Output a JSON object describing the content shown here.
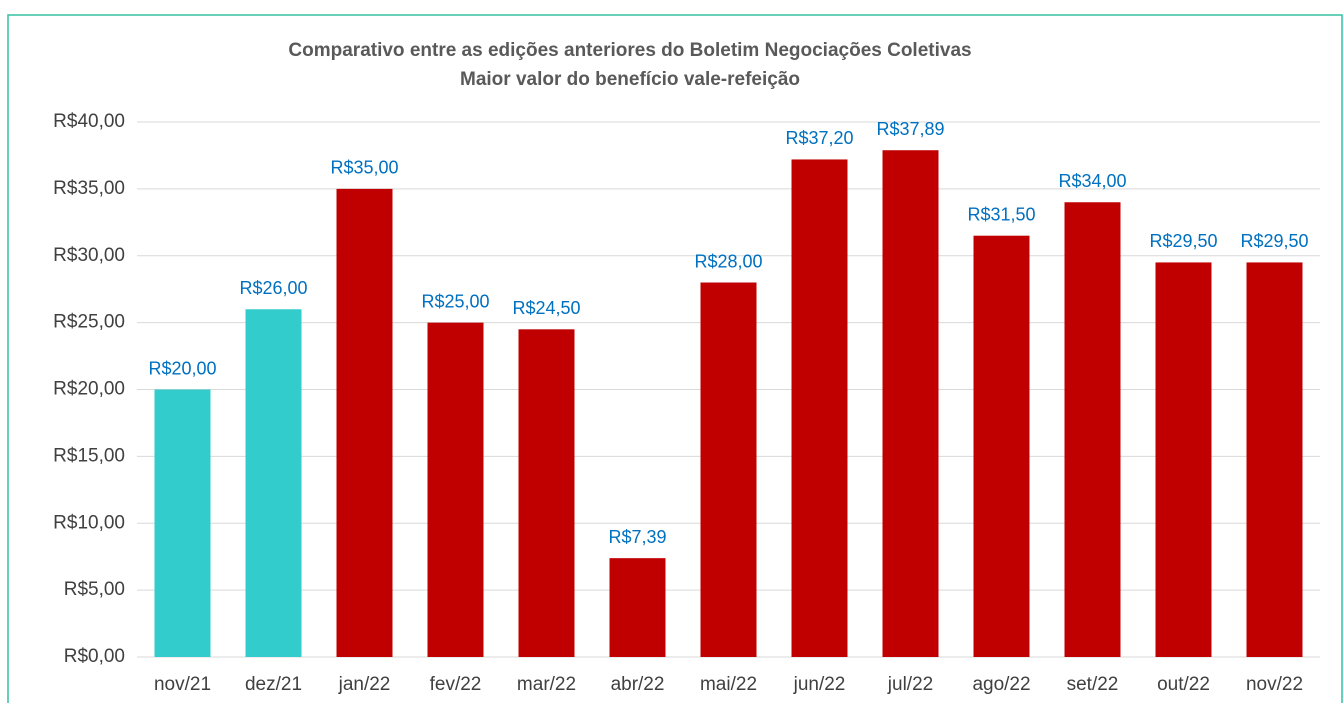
{
  "chart_data": {
    "type": "bar",
    "title": "Comparativo entre as edições anteriores do Boletim Negociações Coletivas",
    "subtitle": "Maior valor do benefício vale-refeição",
    "categories": [
      "nov/21",
      "dez/21",
      "jan/22",
      "fev/22",
      "mar/22",
      "abr/22",
      "mai/22",
      "jun/22",
      "jul/22",
      "ago/22",
      "set/22",
      "out/22",
      "nov/22"
    ],
    "values": [
      20,
      26,
      35,
      25,
      24.5,
      7.39,
      28,
      37.2,
      37.89,
      31.5,
      34,
      29.5,
      29.5
    ],
    "value_labels": [
      "R$20,00",
      "R$26,00",
      "R$35,00",
      "R$25,00",
      "R$24,50",
      "R$7,39",
      "R$28,00",
      "R$37,20",
      "R$37,89",
      "R$31,50",
      "R$34,00",
      "R$29,50",
      "R$29,50"
    ],
    "colors": [
      "#33cccc",
      "#33cccc",
      "#c00000",
      "#c00000",
      "#c00000",
      "#c00000",
      "#c00000",
      "#c00000",
      "#c00000",
      "#c00000",
      "#c00000",
      "#c00000",
      "#c00000"
    ],
    "ylim": [
      0,
      40
    ],
    "yticks": [
      {
        "value": 0,
        "label": "R$0,00"
      },
      {
        "value": 5,
        "label": "R$5,00"
      },
      {
        "value": 10,
        "label": "R$10,00"
      },
      {
        "value": 15,
        "label": "R$15,00"
      },
      {
        "value": 20,
        "label": "R$20,00"
      },
      {
        "value": 25,
        "label": "R$25,00"
      },
      {
        "value": 30,
        "label": "R$30,00"
      },
      {
        "value": 35,
        "label": "R$35,00"
      },
      {
        "value": 40,
        "label": "R$40,00"
      }
    ],
    "grid": true
  }
}
